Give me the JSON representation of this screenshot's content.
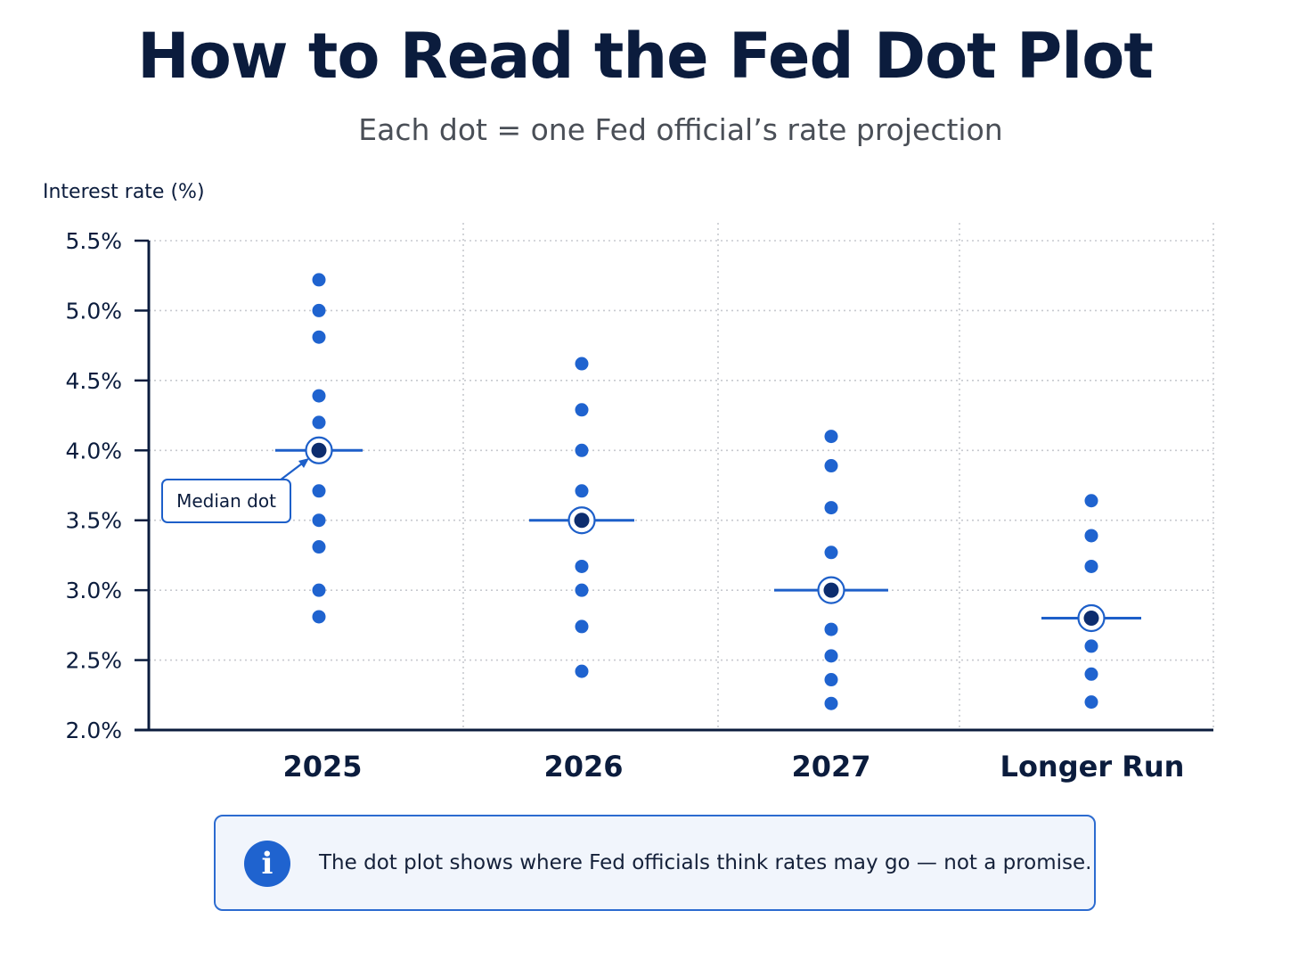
{
  "title": "How to Read the Fed Dot Plot",
  "subtitle": "Each dot = one Fed official’s rate projection",
  "callout": {
    "median_label": "Median dot"
  },
  "info": {
    "icon": "info-icon",
    "text": "The dot plot shows where Fed officials think rates may go — not a promise."
  },
  "colors": {
    "dot": "#1f63cf",
    "median_dot": "#0d2d6e",
    "median_line": "#1d5fc9",
    "axis": "#0b1c3d",
    "grid": "#c7c9cf"
  },
  "chart_data": {
    "type": "scatter",
    "ylabel": "Interest rate (%)",
    "ylim": [
      2.0,
      5.5
    ],
    "yticks": [
      2.0,
      2.5,
      3.0,
      3.5,
      4.0,
      4.5,
      5.0,
      5.5
    ],
    "ytick_labels": [
      "2.0%",
      "2.5%",
      "3.0%",
      "3.5%",
      "4.0%",
      "4.5%",
      "5.0%",
      "5.5%"
    ],
    "categories": [
      "2025",
      "2026",
      "2027",
      "Longer Run"
    ],
    "grid": true,
    "series": [
      {
        "category": "2025",
        "dots": [
          5.22,
          5.0,
          4.81,
          4.39,
          4.2,
          4.0,
          3.71,
          3.5,
          3.31,
          3.0,
          2.81
        ],
        "median": 4.0
      },
      {
        "category": "2026",
        "dots": [
          4.62,
          4.29,
          4.0,
          3.71,
          3.5,
          3.17,
          3.0,
          2.74,
          2.42
        ],
        "median": 3.5
      },
      {
        "category": "2027",
        "dots": [
          4.1,
          3.89,
          3.59,
          3.27,
          3.0,
          2.72,
          2.53,
          2.36,
          2.19
        ],
        "median": 3.0
      },
      {
        "category": "Longer Run",
        "dots": [
          3.64,
          3.39,
          3.17,
          2.8,
          2.6,
          2.4,
          2.2
        ],
        "median": 2.8
      }
    ]
  }
}
